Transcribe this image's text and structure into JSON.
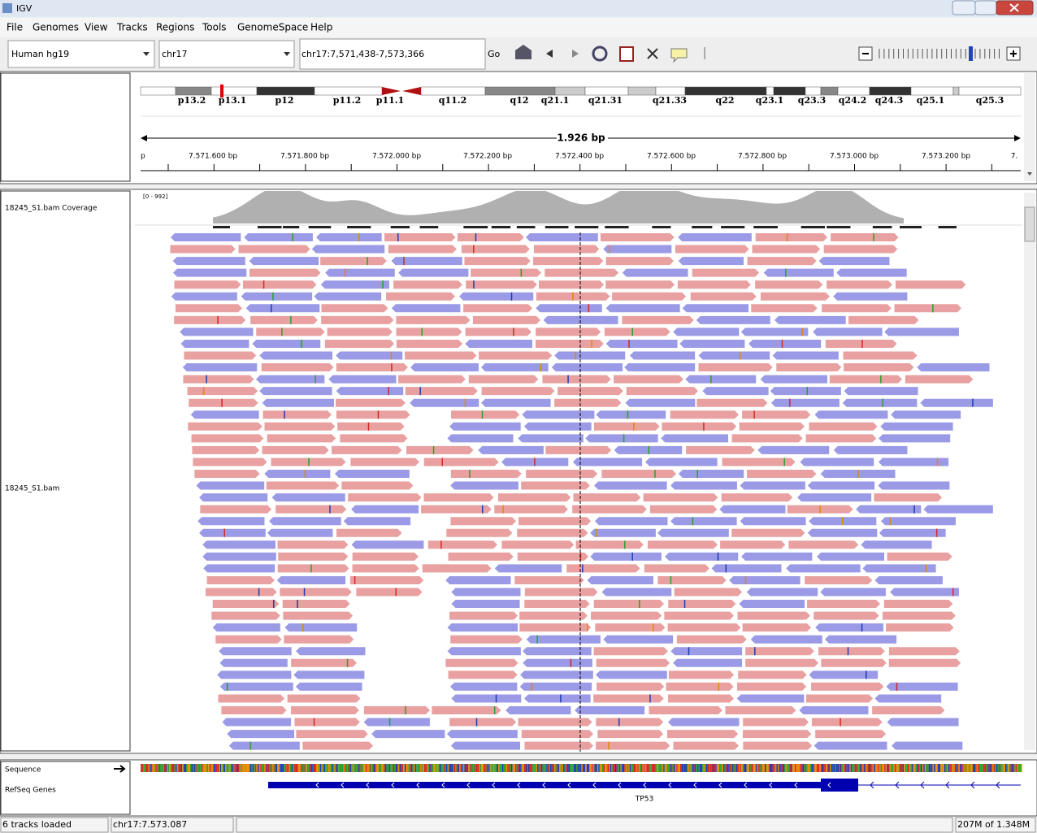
{
  "window": {
    "title": "IGV"
  },
  "menu": [
    "File",
    "Genomes",
    "View",
    "Tracks",
    "Regions",
    "Tools",
    "GenomeSpace",
    "Help"
  ],
  "toolbar": {
    "genome": "Human hg19",
    "chromosome": "chr17",
    "locus": "chr17:7,571,438-7,573,366",
    "go": "Go"
  },
  "cytobands": [
    "p13.2",
    "p13.1",
    "p12",
    "p11.2",
    "p11.1",
    "q11.2",
    "q12",
    "q21.1",
    "q21.31",
    "q21.33",
    "q22",
    "q23.1",
    "q23.3",
    "q24.2",
    "q24.3",
    "q25.1",
    "q25.3"
  ],
  "ruler": {
    "span": "1.926 bp",
    "ticks": [
      "p",
      "7.571.600 bp",
      "7.571.800 bp",
      "7.572.000 bp",
      "7.572.200 bp",
      "7.572.400 bp",
      "7.572.600 bp",
      "7.572.800 bp",
      "7.573.000 bp",
      "7.573.200 bp",
      "7."
    ]
  },
  "tracks": {
    "coverage": {
      "name": "18245_S1.bam Coverage",
      "range": "[0 - 992]"
    },
    "alignment": {
      "name": "18245_S1.bam"
    },
    "sequence": {
      "name": "Sequence"
    },
    "genes": {
      "name": "RefSeq Genes",
      "gene": "TP53"
    }
  },
  "status": {
    "message": "6 tracks loaded",
    "position": "chr17:7.573.087",
    "memory": "207M of 1.348M"
  }
}
